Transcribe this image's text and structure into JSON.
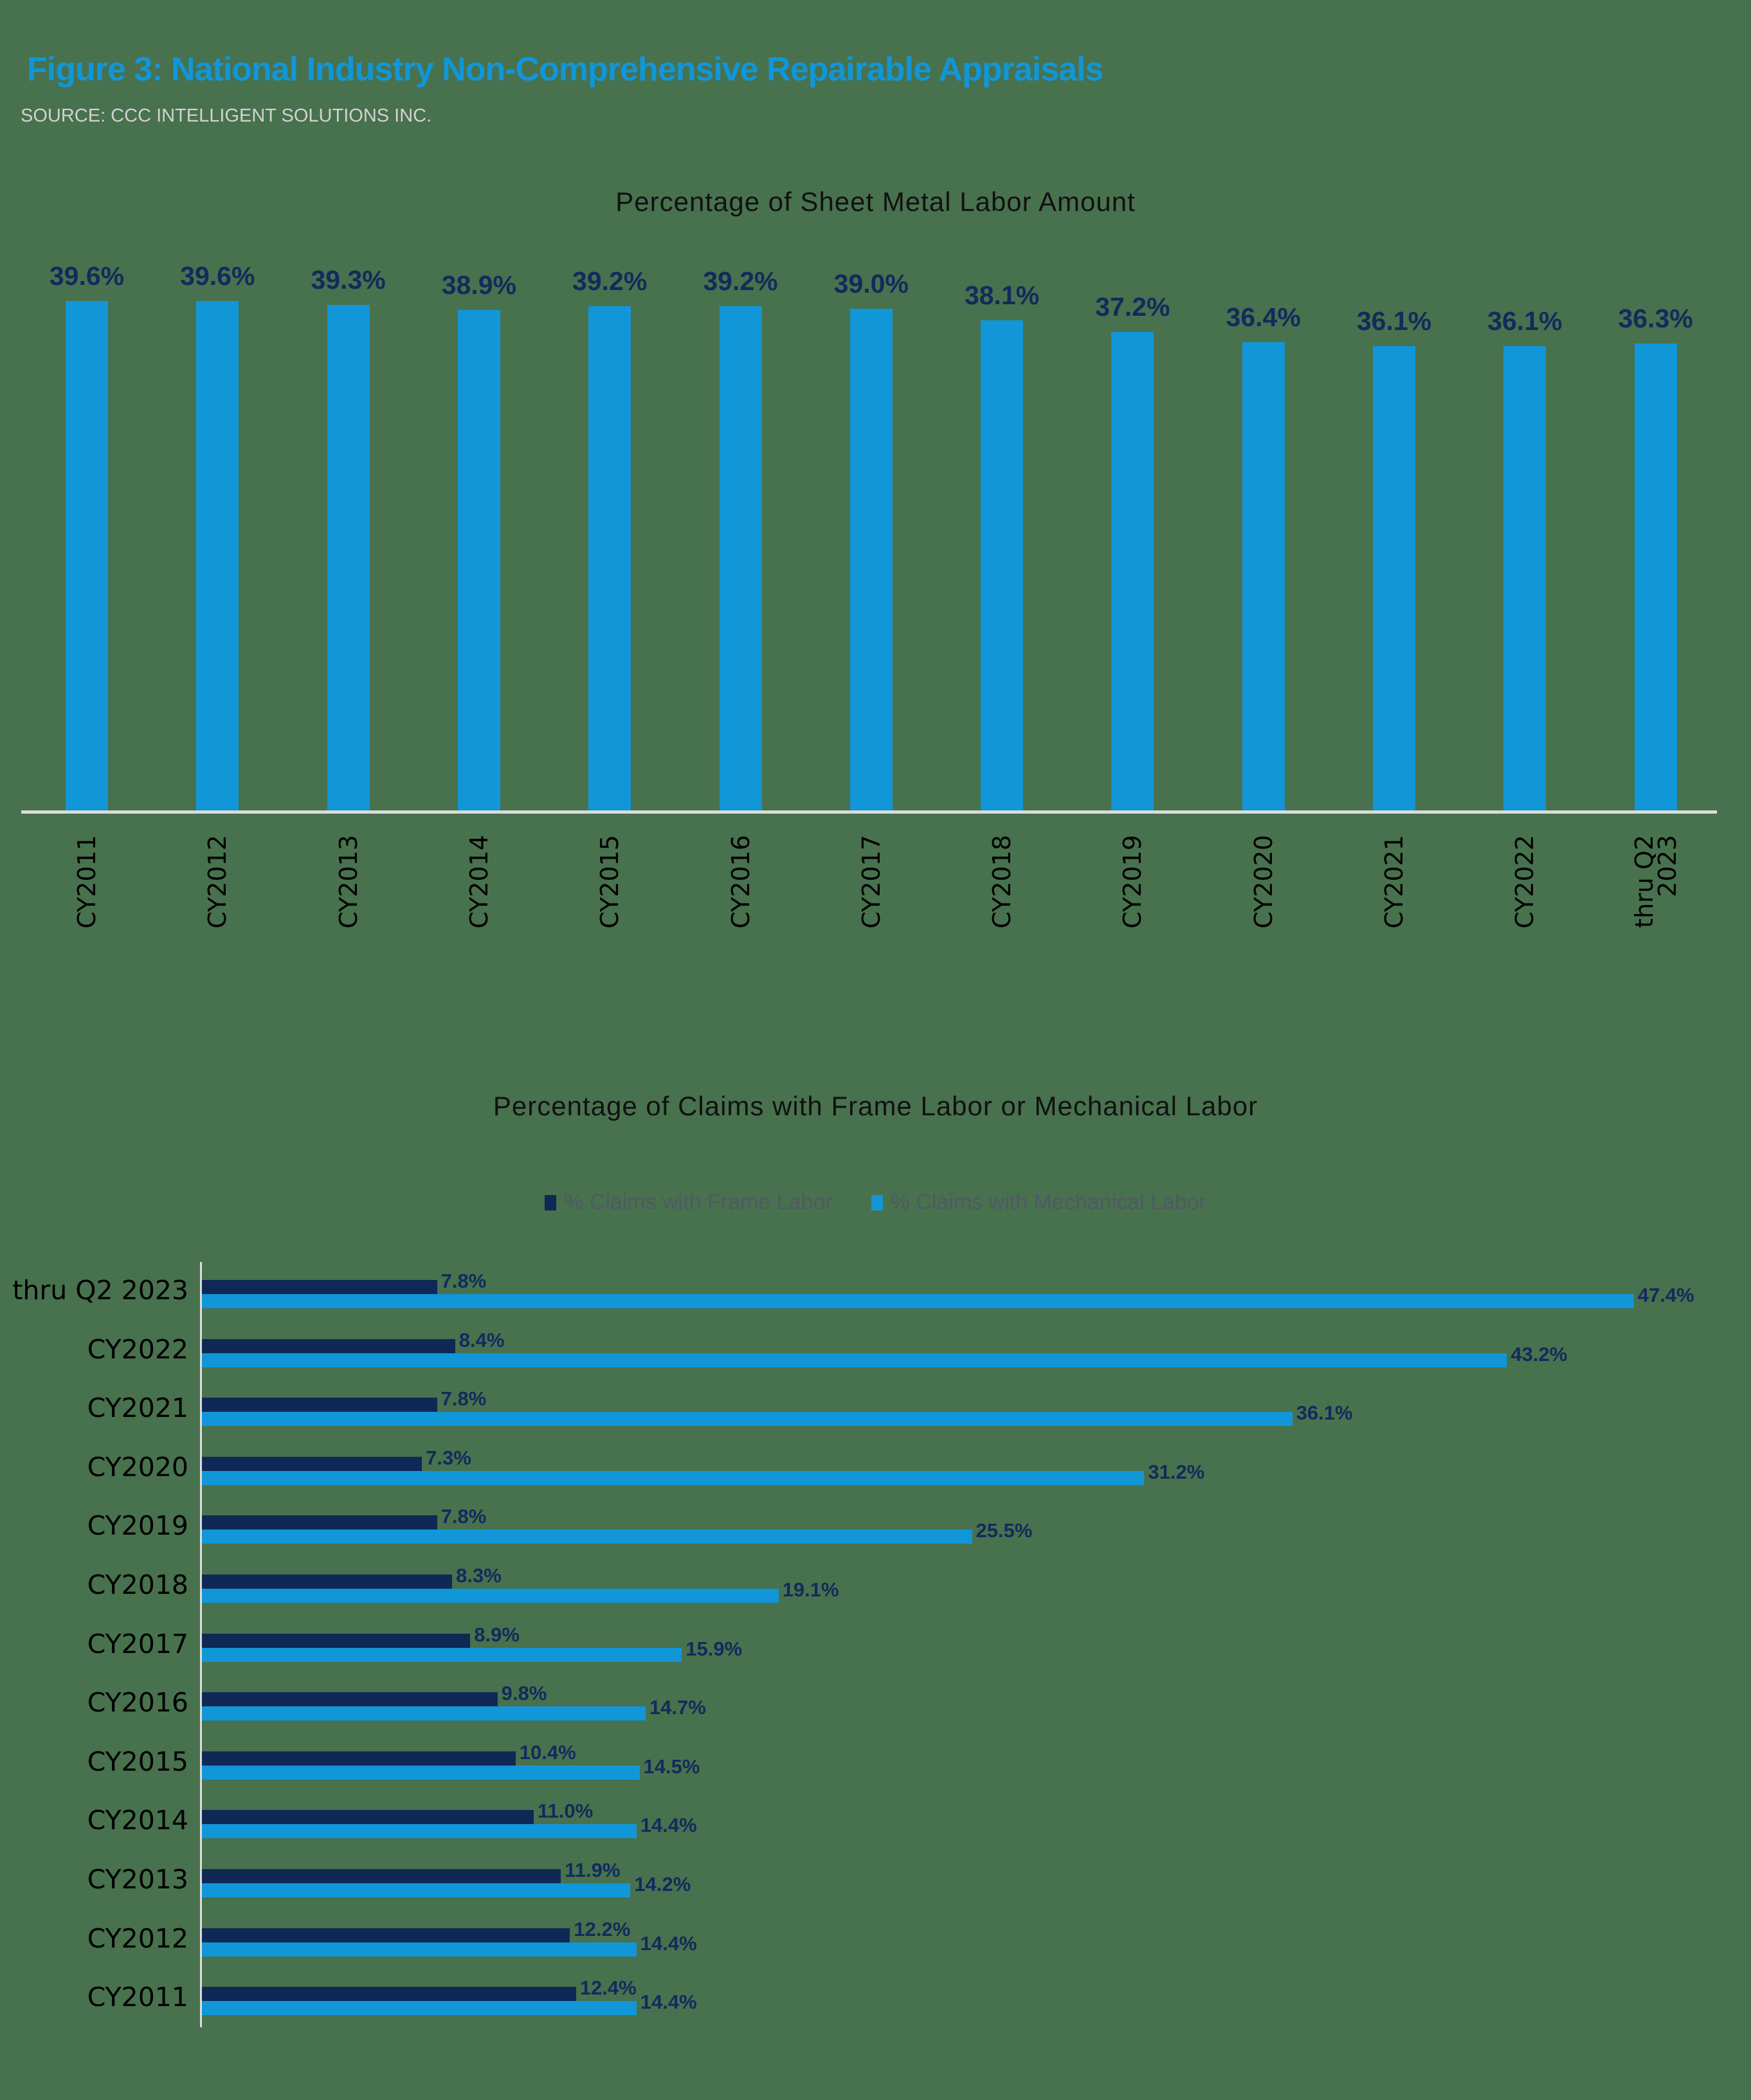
{
  "header": {
    "title": "Figure 3: National Industry Non-Comprehensive Repairable Appraisals",
    "source": "SOURCE: CCC INTELLIGENT SOLUTIONS INC."
  },
  "colors": {
    "background": "#48714e",
    "title": "#1196d8",
    "bar_primary": "#1196d8",
    "bar_dark": "#0f2856",
    "label": "#122b5c"
  },
  "chart_data": [
    {
      "type": "bar",
      "title": "Percentage of Sheet Metal Labor Amount",
      "xlabel": "",
      "ylabel": "",
      "grid": false,
      "categories": [
        "CY2011",
        "CY2012",
        "CY2013",
        "CY2014",
        "CY2015",
        "CY2016",
        "CY2017",
        "CY2018",
        "CY2019",
        "CY2020",
        "CY2021",
        "CY2022",
        "thru Q2\n2023"
      ],
      "values": [
        39.6,
        39.6,
        39.3,
        38.9,
        39.2,
        39.2,
        39.0,
        38.1,
        37.2,
        36.4,
        36.1,
        36.1,
        36.3
      ],
      "labels": [
        "39.6%",
        "39.6%",
        "39.3%",
        "38.9%",
        "39.2%",
        "39.2%",
        "39.0%",
        "38.1%",
        "37.2%",
        "36.4%",
        "36.1%",
        "36.1%",
        "36.3%"
      ],
      "ylim": [
        0,
        40
      ]
    },
    {
      "type": "bar",
      "orientation": "horizontal",
      "title": "Percentage of Claims with Frame Labor or Mechanical Labor",
      "legend_position": "top",
      "grid": false,
      "categories": [
        "thru Q2 2023",
        "CY2022",
        "CY2021",
        "CY2020",
        "CY2019",
        "CY2018",
        "CY2017",
        "CY2016",
        "CY2015",
        "CY2014",
        "CY2013",
        "CY2012",
        "CY2011"
      ],
      "series": [
        {
          "name": "% Claims with Frame Labor",
          "color": "#0f2856",
          "values": [
            7.8,
            8.4,
            7.8,
            7.3,
            7.8,
            8.3,
            8.9,
            9.8,
            10.4,
            11.0,
            11.9,
            12.2,
            12.4
          ],
          "labels": [
            "7.8%",
            "8.4%",
            "7.8%",
            "7.3%",
            "7.8%",
            "8.3%",
            "8.9%",
            "9.8%",
            "10.4%",
            "11.0%",
            "11.9%",
            "12.2%",
            "12.4%"
          ]
        },
        {
          "name": "% Claims with Mechanical Labor",
          "color": "#1196d8",
          "values": [
            47.4,
            43.2,
            36.1,
            31.2,
            25.5,
            19.1,
            15.9,
            14.7,
            14.5,
            14.4,
            14.2,
            14.4,
            14.4
          ],
          "labels": [
            "47.4%",
            "43.2%",
            "36.1%",
            "31.2%",
            "25.5%",
            "19.1%",
            "15.9%",
            "14.7%",
            "14.5%",
            "14.4%",
            "14.2%",
            "14.4%",
            "14.4%"
          ]
        }
      ],
      "xlim": [
        0,
        50
      ]
    }
  ]
}
